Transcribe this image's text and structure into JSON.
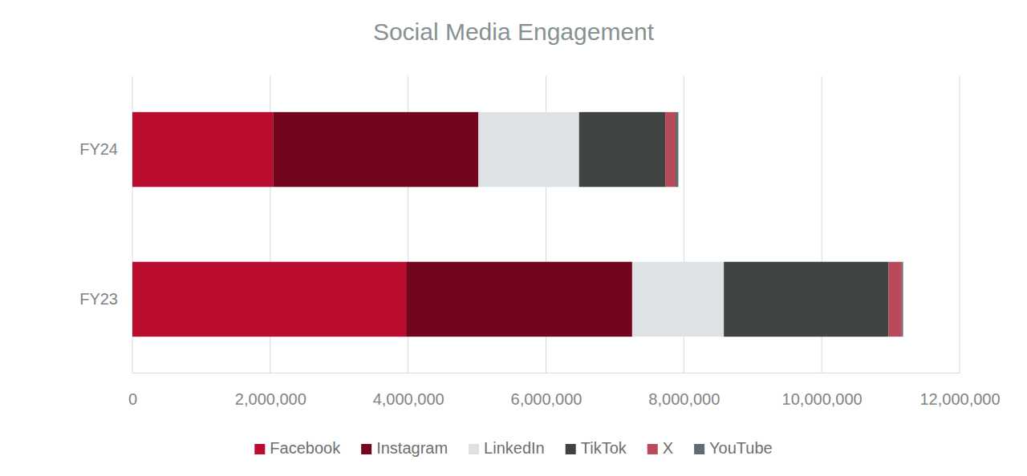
{
  "chart_data": {
    "type": "bar",
    "title": "Social Media Engagement",
    "orientation": "horizontal",
    "stacked": true,
    "grid": true,
    "legend": "bottom",
    "categories": [
      "FY23",
      "FY24"
    ],
    "series": [
      {
        "name": "Facebook",
        "color": "#ba0c2f",
        "values": [
          3970000,
          2040000
        ]
      },
      {
        "name": "Instagram",
        "color": "#73061e",
        "values": [
          3280000,
          2980000
        ]
      },
      {
        "name": "LinkedIn",
        "color": "#dfe2e5",
        "values": [
          1330000,
          1460000
        ]
      },
      {
        "name": "TikTok",
        "color": "#3f4443",
        "values": [
          2390000,
          1250000
        ]
      },
      {
        "name": "X",
        "color": "#b94a5a",
        "values": [
          190000,
          150000
        ]
      },
      {
        "name": "YouTube",
        "color": "#636a72",
        "values": [
          20000,
          40000
        ]
      }
    ],
    "xlim": [
      0,
      12000000
    ],
    "xticks": [
      0,
      {
        "value": 2000000,
        "label": "2,000,000"
      },
      {
        "value": 4000000,
        "label": "4,000,000"
      },
      {
        "value": 6000000,
        "label": "6,000,000"
      },
      {
        "value": 8000000,
        "label": "8,000,000"
      },
      {
        "value": 10000000,
        "label": "10,000,000"
      },
      {
        "value": 12000000,
        "label": "12,000,000"
      }
    ]
  }
}
